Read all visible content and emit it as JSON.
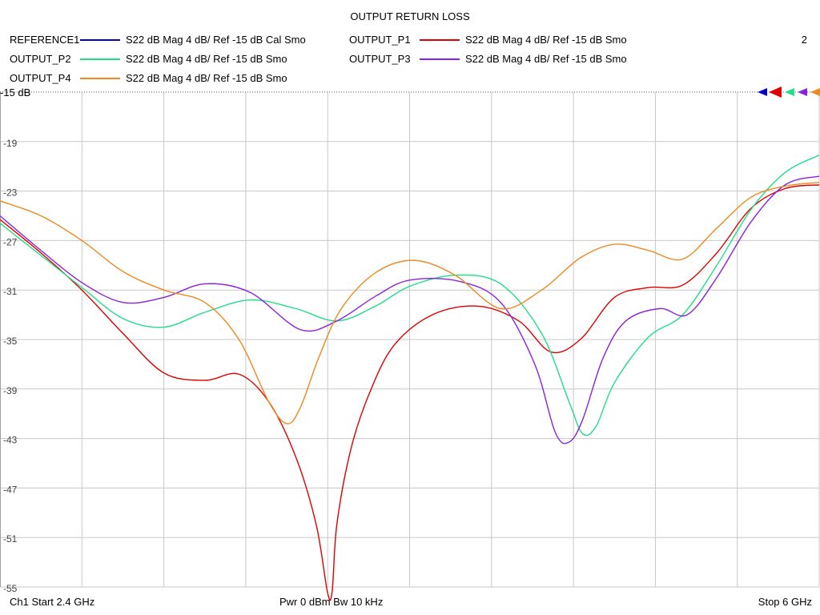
{
  "header": {
    "title": "OUTPUT RETURN LOSS",
    "trace_number": "2"
  },
  "footer": {
    "left": "Ch1  Start  2.4 GHz",
    "middle": "Pwr  0 dBm  Bw  10 kHz",
    "right": "Stop  6 GHz"
  },
  "chart_data": {
    "type": "line",
    "title": "OUTPUT RETURN LOSS",
    "x_unit": "GHz",
    "xlim": [
      2.4,
      6.0
    ],
    "ylim": [
      -55,
      -15
    ],
    "reference_label": "-15 dB",
    "y_ticks": [
      "-19",
      "-23",
      "-27",
      "-31",
      "-35",
      "-39",
      "-43",
      "-47",
      "-51",
      "-55"
    ],
    "y_tick_values": [
      -19,
      -23,
      -27,
      -31,
      -35,
      -39,
      -43,
      -47,
      -51,
      -55
    ],
    "x_divisions": 10,
    "grid": true,
    "legend_position": "top",
    "series": [
      {
        "name": "REFERENCE1",
        "desc": "S22  dB Mag  4 dB/ Ref -15 dB  Cal Smo",
        "color": "#0000cc",
        "x": [],
        "y": []
      },
      {
        "name": "OUTPUT_P1",
        "desc": "S22  dB Mag  4 dB/ Ref -15 dB  Smo",
        "color": "#dd0000",
        "x": [
          2.4,
          2.58,
          2.76,
          2.94,
          3.12,
          3.3,
          3.45,
          3.58,
          3.7,
          3.79,
          3.84,
          3.86,
          3.88,
          3.94,
          4.02,
          4.13,
          4.3,
          4.5,
          4.68,
          4.82,
          4.95,
          5.1,
          5.25,
          5.4,
          5.55,
          5.7,
          5.85,
          6.0
        ],
        "y": [
          -25.3,
          -28.0,
          -31.0,
          -34.5,
          -37.7,
          -38.3,
          -37.8,
          -40.0,
          -44.5,
          -50.0,
          -55.5,
          -55.3,
          -50.0,
          -44.0,
          -39.5,
          -35.5,
          -33.0,
          -32.3,
          -33.5,
          -36.0,
          -35.0,
          -31.6,
          -30.8,
          -30.6,
          -28.0,
          -24.4,
          -22.8,
          -22.5
        ]
      },
      {
        "name": "OUTPUT_P2",
        "desc": "S22  dB Mag  4 dB/ Ref -15 dB  Smo",
        "color": "#22dd88",
        "x": [
          2.4,
          2.58,
          2.76,
          2.94,
          3.12,
          3.3,
          3.5,
          3.7,
          3.88,
          4.05,
          4.2,
          4.4,
          4.6,
          4.78,
          4.9,
          4.96,
          5.02,
          5.1,
          5.25,
          5.4,
          5.55,
          5.7,
          5.85,
          6.0
        ],
        "y": [
          -25.6,
          -28.2,
          -30.8,
          -33.3,
          -34.0,
          -32.8,
          -31.8,
          -32.5,
          -33.5,
          -32.3,
          -30.7,
          -29.8,
          -30.5,
          -34.5,
          -40.0,
          -42.6,
          -42.0,
          -38.5,
          -34.8,
          -33.0,
          -29.0,
          -24.5,
          -21.5,
          -20.1
        ]
      },
      {
        "name": "OUTPUT_P3",
        "desc": "S22  dB Mag  4 dB/ Ref -15 dB  Smo",
        "color": "#8822dd",
        "x": [
          2.4,
          2.58,
          2.76,
          2.94,
          3.12,
          3.3,
          3.5,
          3.72,
          3.88,
          4.05,
          4.2,
          4.42,
          4.6,
          4.75,
          4.84,
          4.9,
          4.96,
          5.05,
          5.15,
          5.3,
          5.42,
          5.55,
          5.7,
          5.85,
          6.0
        ],
        "y": [
          -25.0,
          -27.8,
          -30.4,
          -32.0,
          -31.6,
          -30.5,
          -31.2,
          -34.2,
          -33.5,
          -31.5,
          -30.2,
          -30.3,
          -32.0,
          -37.0,
          -42.5,
          -43.3,
          -41.5,
          -36.5,
          -33.5,
          -32.5,
          -33.0,
          -30.0,
          -25.5,
          -22.5,
          -21.8
        ]
      },
      {
        "name": "OUTPUT_P4",
        "desc": "S22  dB Mag  4 dB/ Ref -15 dB  Smo",
        "color": "#ee8822",
        "x": [
          2.4,
          2.58,
          2.76,
          2.94,
          3.12,
          3.3,
          3.45,
          3.58,
          3.66,
          3.72,
          3.8,
          3.9,
          4.05,
          4.22,
          4.4,
          4.6,
          4.78,
          4.95,
          5.1,
          5.25,
          5.4,
          5.55,
          5.7,
          5.85,
          6.0
        ],
        "y": [
          -23.8,
          -25.0,
          -27.0,
          -29.5,
          -31.0,
          -32.0,
          -35.0,
          -40.0,
          -41.8,
          -40.5,
          -36.5,
          -32.5,
          -29.6,
          -28.6,
          -29.8,
          -32.5,
          -31.0,
          -28.4,
          -27.3,
          -27.8,
          -28.5,
          -26.0,
          -23.5,
          -22.6,
          -22.3
        ]
      }
    ]
  }
}
